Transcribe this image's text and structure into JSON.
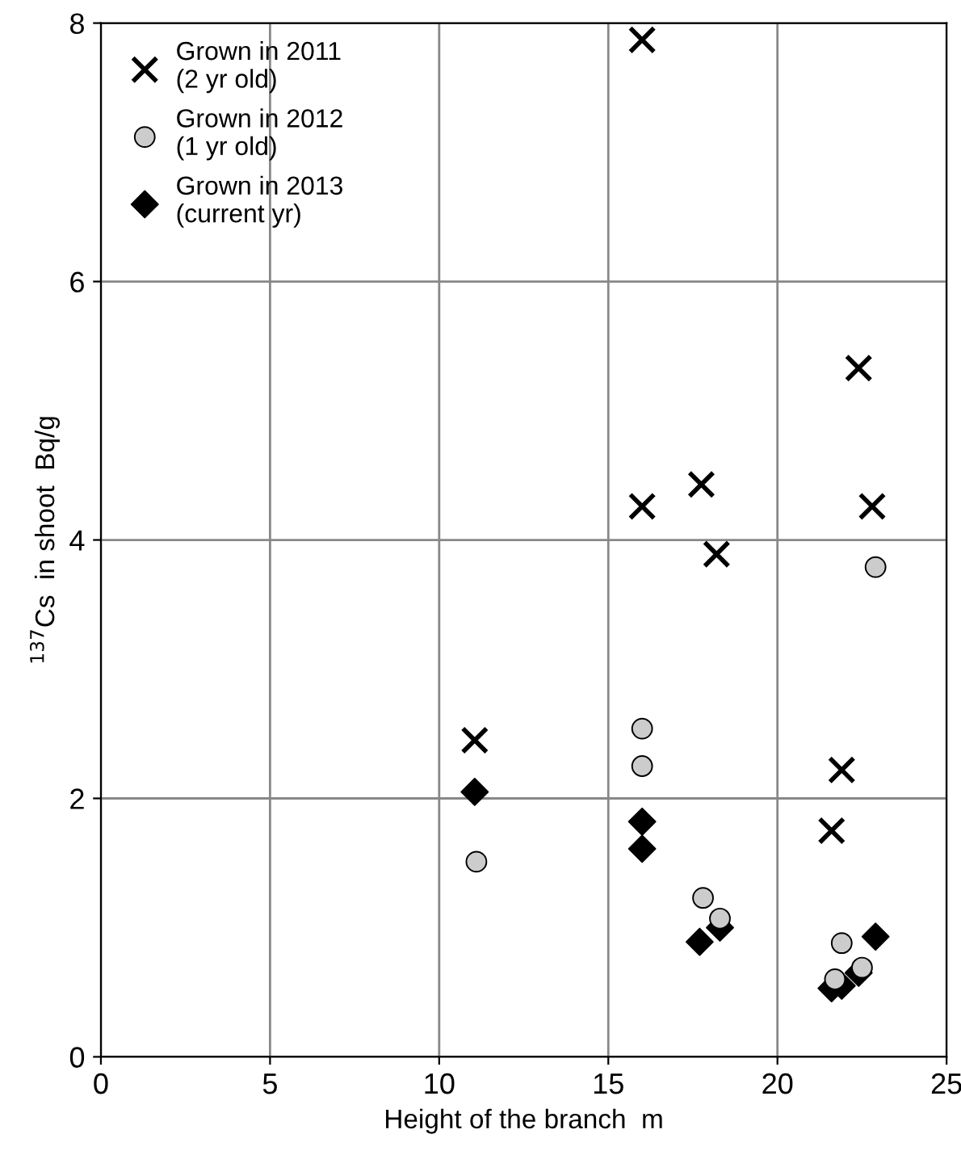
{
  "chart_data": {
    "type": "scatter",
    "xlabel": "Height of the branch  m",
    "ylabel": "$^{137}$Cs  in shoot  Bq/g",
    "xlim": [
      0,
      25
    ],
    "xticks": [
      0,
      5,
      10,
      15,
      20,
      25
    ],
    "ylim": [
      0,
      8
    ],
    "yticks": [
      0,
      2,
      4,
      6,
      8
    ],
    "grid": true,
    "legend": "top left",
    "series": [
      {
        "name": "Grown in 2011\n(2 yr old)",
        "color": "#000000",
        "marker": "cross",
        "x": [
          11.05,
          16.0,
          16.0,
          17.75,
          18.2,
          22.4,
          22.8,
          21.9,
          21.6
        ],
        "values": [
          2.45,
          7.87,
          4.26,
          4.43,
          3.89,
          5.33,
          4.26,
          2.22,
          1.75
        ]
      },
      {
        "name": "Grown in 2012\n(1 yr old)",
        "color": "#cccccc",
        "marker": "circle",
        "x": [
          11.1,
          16.0,
          16.0,
          17.8,
          18.3,
          21.9,
          21.7,
          22.5,
          22.9
        ],
        "values": [
          1.51,
          2.54,
          2.25,
          1.23,
          1.07,
          0.88,
          0.6,
          0.69,
          3.79
        ]
      },
      {
        "name": "Grown in 2013\n(current yr)",
        "color": "#000000",
        "marker": "diamond",
        "x": [
          11.05,
          16.0,
          16.0,
          17.7,
          18.3,
          21.6,
          21.9,
          22.4,
          22.9
        ],
        "values": [
          2.05,
          1.82,
          1.61,
          0.89,
          1.0,
          0.53,
          0.55,
          0.65,
          0.93
        ]
      }
    ]
  }
}
